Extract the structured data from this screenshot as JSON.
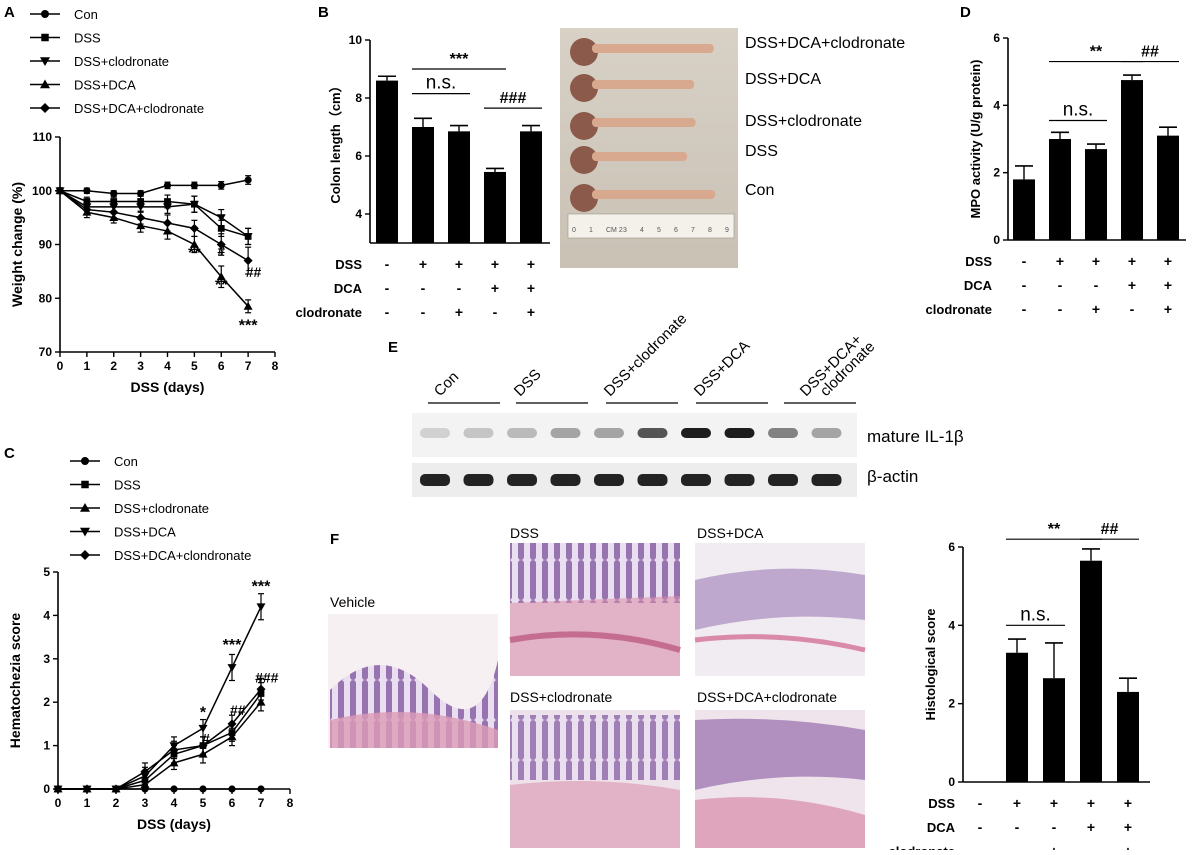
{
  "panel_letters": {
    "a": "A",
    "b": "B",
    "c": "C",
    "d": "D",
    "e": "E",
    "f": "F"
  },
  "colors": {
    "ink": "#000000",
    "tissue_pink": "#d98aa8",
    "tissue_purple": "#7a4e9a",
    "photo_bg": "#ddd6cc",
    "blot_band": "#1a1a1a"
  },
  "chart_data": [
    {
      "id": "A",
      "type": "line",
      "xlabel": "DSS (days)",
      "ylabel": "Weight change (%)",
      "xlim": [
        0,
        8
      ],
      "ylim": [
        70,
        110
      ],
      "xticks": [
        0,
        1,
        2,
        3,
        4,
        5,
        6,
        7,
        8
      ],
      "yticks": [
        70,
        80,
        90,
        100,
        110
      ],
      "legend_position": "top-left",
      "series": [
        {
          "name": "Con",
          "marker": "circle",
          "x": [
            0,
            1,
            2,
            3,
            4,
            5,
            6,
            7
          ],
          "values": [
            100,
            100,
            99.5,
            99.5,
            101,
            101,
            101,
            102
          ],
          "err": [
            0.5,
            0.5,
            0.5,
            0.5,
            0.6,
            0.6,
            0.7,
            0.8
          ]
        },
        {
          "name": "DSS",
          "marker": "square",
          "x": [
            0,
            1,
            2,
            3,
            4,
            5,
            6,
            7
          ],
          "values": [
            100,
            98,
            98,
            98,
            98,
            97.5,
            93,
            91.5
          ],
          "err": [
            0.5,
            0.8,
            0.8,
            1,
            1.2,
            1.5,
            1.5,
            1.5
          ]
        },
        {
          "name": "DSS+clodronate",
          "marker": "tri-down",
          "x": [
            0,
            1,
            2,
            3,
            4,
            5,
            6,
            7
          ],
          "values": [
            100,
            97,
            97,
            97,
            97,
            97.5,
            95,
            91.5
          ],
          "err": [
            0.5,
            0.8,
            0.8,
            1,
            1.2,
            1.5,
            1.5,
            1.5
          ]
        },
        {
          "name": "DSS+DCA",
          "marker": "tri-up",
          "x": [
            0,
            1,
            2,
            3,
            4,
            5,
            6,
            7
          ],
          "values": [
            100,
            96,
            95,
            93.5,
            92.5,
            90,
            84,
            78.5
          ],
          "err": [
            0.5,
            1,
            1,
            1.2,
            1.5,
            1.5,
            2,
            1.2
          ]
        },
        {
          "name": "DSS+DCA+clodronate",
          "marker": "diamond",
          "x": [
            0,
            1,
            2,
            3,
            4,
            5,
            6,
            7
          ],
          "values": [
            100,
            96.5,
            96,
            95,
            94,
            93,
            90,
            87
          ],
          "err": [
            0.5,
            1,
            1,
            1.2,
            1.5,
            1.5,
            2,
            2.5
          ]
        }
      ],
      "annotations": [
        {
          "text": "**",
          "x": 5.0,
          "y": 87.5
        },
        {
          "text": "#",
          "x": 6.0,
          "y": 88.0
        },
        {
          "text": "**",
          "x": 6.0,
          "y": 81.5
        },
        {
          "text": "##",
          "x": 7.2,
          "y": 84.0
        },
        {
          "text": "***",
          "x": 7.0,
          "y": 74.0
        }
      ]
    },
    {
      "id": "B",
      "type": "bar",
      "ylabel": "Colon length（cm）",
      "ylim": [
        3,
        10
      ],
      "yticks": [
        4,
        6,
        8,
        10
      ],
      "categories": [
        "Con",
        "DSS",
        "DSS+clodronate",
        "DSS+DCA",
        "DSS+DCA+clodronate"
      ],
      "values": [
        8.6,
        7.0,
        6.85,
        5.45,
        6.85
      ],
      "err": [
        0.15,
        0.3,
        0.2,
        0.12,
        0.2
      ],
      "treatment_rows": [
        {
          "label": "DSS",
          "signs": [
            "-",
            "+",
            "+",
            "+",
            "+"
          ]
        },
        {
          "label": "DCA",
          "signs": [
            "-",
            "-",
            "-",
            "+",
            "+"
          ]
        },
        {
          "label": "clodronate",
          "signs": [
            "-",
            "-",
            "+",
            "-",
            "+"
          ]
        }
      ],
      "significance": [
        {
          "text": "***",
          "from": 1,
          "to": 3,
          "y": 9.0
        },
        {
          "text": "n.s.",
          "from": 1,
          "to": 2,
          "y": 8.15
        },
        {
          "text": "###",
          "from": 3,
          "to": 4,
          "y": 7.65
        }
      ]
    },
    {
      "id": "C",
      "type": "line",
      "xlabel": "DSS (days)",
      "ylabel": "Hematochezia score",
      "xlim": [
        0,
        8
      ],
      "ylim": [
        0,
        5
      ],
      "xticks": [
        0,
        1,
        2,
        3,
        4,
        5,
        6,
        7,
        8
      ],
      "yticks": [
        0,
        1,
        2,
        3,
        4,
        5
      ],
      "legend_position": "top-left",
      "series": [
        {
          "name": "Con",
          "marker": "circle",
          "x": [
            0,
            1,
            2,
            3,
            4,
            5,
            6,
            7
          ],
          "values": [
            0,
            0,
            0,
            0,
            0,
            0,
            0,
            0
          ],
          "err": [
            0,
            0,
            0,
            0,
            0,
            0,
            0,
            0
          ]
        },
        {
          "name": "DSS",
          "marker": "square",
          "x": [
            0,
            1,
            2,
            3,
            4,
            5,
            6,
            7
          ],
          "values": [
            0,
            0,
            0,
            0.2,
            0.8,
            1.0,
            1.3,
            2.2
          ],
          "err": [
            0,
            0,
            0,
            0.15,
            0.2,
            0.2,
            0.2,
            0.25
          ]
        },
        {
          "name": "DSS+clodronate",
          "marker": "tri-up",
          "x": [
            0,
            1,
            2,
            3,
            4,
            5,
            6,
            7
          ],
          "values": [
            0,
            0,
            0,
            0.1,
            0.6,
            0.8,
            1.2,
            2.0
          ],
          "err": [
            0,
            0,
            0,
            0.1,
            0.15,
            0.2,
            0.2,
            0.2
          ]
        },
        {
          "name": "DSS+DCA",
          "marker": "tri-down",
          "x": [
            0,
            1,
            2,
            3,
            4,
            5,
            6,
            7
          ],
          "values": [
            0,
            0,
            0,
            0.3,
            1.0,
            1.4,
            2.8,
            4.2
          ],
          "err": [
            0,
            0,
            0,
            0.2,
            0.2,
            0.2,
            0.3,
            0.3
          ]
        },
        {
          "name": "DSS+DCA+clondronate",
          "marker": "diamond",
          "x": [
            0,
            1,
            2,
            3,
            4,
            5,
            6,
            7
          ],
          "values": [
            0,
            0,
            0,
            0.4,
            0.9,
            1.0,
            1.5,
            2.3
          ],
          "err": [
            0,
            0,
            0,
            0.2,
            0.2,
            0.2,
            0.2,
            0.25
          ]
        }
      ],
      "annotations": [
        {
          "text": "***",
          "x": 7.0,
          "y": 4.55
        },
        {
          "text": "***",
          "x": 6.0,
          "y": 3.2
        },
        {
          "text": "*",
          "x": 5.0,
          "y": 1.65
        },
        {
          "text": "#",
          "x": 5.1,
          "y": 1.05
        },
        {
          "text": "##",
          "x": 6.2,
          "y": 1.7
        },
        {
          "text": "###",
          "x": 7.2,
          "y": 2.45
        }
      ]
    },
    {
      "id": "D",
      "type": "bar",
      "ylabel": "MPO activity (U/g protein)",
      "ylim": [
        0,
        6
      ],
      "yticks": [
        0,
        2,
        4,
        6
      ],
      "categories": [
        "Con",
        "DSS",
        "DSS+clodronate",
        "DSS+DCA",
        "DSS+DCA+clodronate"
      ],
      "values": [
        1.8,
        3.0,
        2.7,
        4.75,
        3.1
      ],
      "err": [
        0.4,
        0.2,
        0.15,
        0.15,
        0.25
      ],
      "treatment_rows": [
        {
          "label": "DSS",
          "signs": [
            "-",
            "+",
            "+",
            "+",
            "+"
          ]
        },
        {
          "label": "DCA",
          "signs": [
            "-",
            "-",
            "-",
            "+",
            "+"
          ]
        },
        {
          "label": "clodronate",
          "signs": [
            "-",
            "-",
            "+",
            "-",
            "+"
          ]
        }
      ],
      "significance": [
        {
          "text": "**",
          "from": 1,
          "to": 3,
          "y": 5.3
        },
        {
          "text": "##",
          "from": 3,
          "to": 4,
          "y": 5.3
        },
        {
          "text": "n.s.",
          "from": 1,
          "to": 2,
          "y": 3.55
        }
      ]
    },
    {
      "id": "F",
      "type": "bar",
      "ylabel": "Histological score",
      "ylim": [
        0,
        6
      ],
      "yticks": [
        0,
        2,
        4,
        6
      ],
      "categories": [
        "Con",
        "DSS",
        "DSS+clodronate",
        "DSS+DCA",
        "DSS+DCA+clodronate"
      ],
      "values": [
        0,
        3.3,
        2.65,
        5.65,
        2.3
      ],
      "err": [
        0,
        0.35,
        0.9,
        0.3,
        0.35
      ],
      "treatment_rows": [
        {
          "label": "DSS",
          "signs": [
            "-",
            "+",
            "+",
            "+",
            "+"
          ]
        },
        {
          "label": "DCA",
          "signs": [
            "-",
            "-",
            "-",
            "+",
            "+"
          ]
        },
        {
          "label": "clodronate",
          "signs": [
            "-",
            "-",
            "+",
            "-",
            "+"
          ]
        }
      ],
      "significance": [
        {
          "text": "**",
          "from": 1,
          "to": 3,
          "y": 6.2
        },
        {
          "text": "##",
          "from": 3,
          "to": 4,
          "y": 6.2
        },
        {
          "text": "n.s.",
          "from": 1,
          "to": 2,
          "y": 4.0
        }
      ]
    }
  ],
  "colon_photo": {
    "labels": [
      "DSS+DCA+clodronate",
      "DSS+DCA",
      "DSS+clodronate",
      "DSS",
      "Con"
    ],
    "colon_lengths": [
      0.87,
      0.73,
      0.74,
      0.68,
      0.88
    ],
    "ruler_numbers": [
      "0",
      "1",
      "CM 2",
      "3",
      "4",
      "5",
      "6",
      "7",
      "8",
      "9"
    ]
  },
  "western_blot": {
    "groups": [
      "Con",
      "DSS",
      "DSS+clodronate",
      "DSS+DCA",
      "DSS+DCA+ clodronate"
    ],
    "proteins": [
      "mature IL-1β",
      "β-actin"
    ],
    "il1b_intensity": [
      0.15,
      0.2,
      0.25,
      0.35,
      0.35,
      0.7,
      0.95,
      0.95,
      0.5,
      0.35
    ]
  },
  "histology": {
    "labels": [
      "Vehicle",
      "DSS",
      "DSS+DCA",
      "DSS+clodronate",
      "DSS+DCA+clodronate"
    ]
  }
}
